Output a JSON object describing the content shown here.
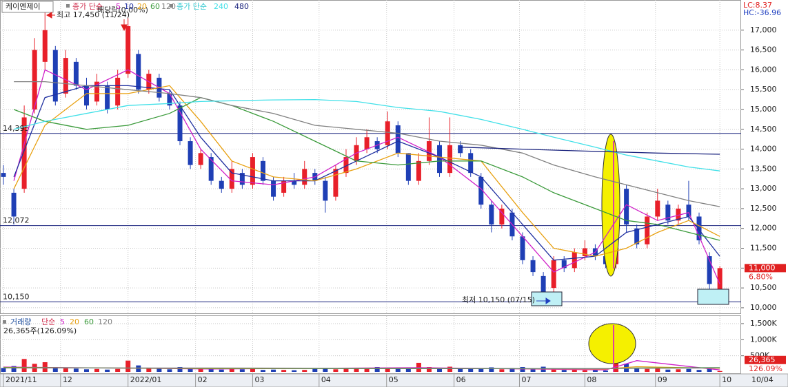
{
  "chart_data": [
    {
      "type": "candlestick",
      "stock_name": "케이엔제이",
      "legend_label": "종가 단순",
      "legend_label2": "종가 단순",
      "lc": "LC:8.37",
      "hc": "HC:-36.96",
      "up_color": "#e8202a",
      "down_color": "#1f3fb5",
      "grid": true,
      "ylim": [
        9860,
        17760
      ],
      "yticks": [
        {
          "value": 10000,
          "label": "10,000"
        },
        {
          "value": 10500,
          "label": "10,500"
        },
        {
          "value": 11000,
          "label": "11,000"
        },
        {
          "value": 11500,
          "label": "11,500"
        },
        {
          "value": 12000,
          "label": "12,000"
        },
        {
          "value": 12500,
          "label": "12,500"
        },
        {
          "value": 13000,
          "label": "13,000"
        },
        {
          "value": 13500,
          "label": "13,500"
        },
        {
          "value": 14000,
          "label": "14,000"
        },
        {
          "value": 14500,
          "label": "14,500"
        },
        {
          "value": 15000,
          "label": "15,000"
        },
        {
          "value": 15500,
          "label": "15,500"
        },
        {
          "value": 16000,
          "label": "16,000"
        },
        {
          "value": 16500,
          "label": "16,500"
        },
        {
          "value": 17000,
          "label": "17,000"
        }
      ],
      "xticks": [
        {
          "value": 0,
          "label": "2021/11"
        },
        {
          "value": 5.5,
          "label": "12"
        },
        {
          "value": 12,
          "label": "2022/01"
        },
        {
          "value": 18.5,
          "label": "02"
        },
        {
          "value": 24,
          "label": "03"
        },
        {
          "value": 30.4,
          "label": "04"
        },
        {
          "value": 36.9,
          "label": "05"
        },
        {
          "value": 43.4,
          "label": "06"
        },
        {
          "value": 49.7,
          "label": "07"
        },
        {
          "value": 56,
          "label": "08"
        },
        {
          "value": 62.8,
          "label": "09"
        },
        {
          "value": 69,
          "label": "10"
        }
      ],
      "last_date": "10/04",
      "open": [
        13400,
        12900,
        13000,
        15000,
        16200,
        16500,
        15400,
        16200,
        15600,
        15200,
        15600,
        15100,
        15900,
        16400,
        15500,
        15800,
        15400,
        15100,
        14200,
        13600,
        13800,
        13200,
        13000,
        13400,
        13100,
        13700,
        13200,
        12900,
        13200,
        13100,
        13400,
        13200,
        12800,
        13400,
        13700,
        14000,
        14200,
        14100,
        14600,
        13900,
        13200,
        13700,
        14100,
        13400,
        14100,
        13900,
        13300,
        12600,
        12100,
        12400,
        11800,
        11200,
        10800,
        10500,
        11200,
        11000,
        11300,
        11500,
        11300,
        11100,
        13000,
        12000,
        11600,
        12300,
        12600,
        12200,
        12600,
        12300,
        11300,
        10450
      ],
      "high": [
        13600,
        13000,
        15100,
        16800,
        17450,
        16600,
        16500,
        16300,
        15800,
        15900,
        15700,
        16000,
        17300,
        16500,
        16000,
        15900,
        15500,
        15200,
        14300,
        14000,
        13900,
        13300,
        13700,
        13500,
        13900,
        13800,
        13300,
        13300,
        13400,
        13700,
        13500,
        13300,
        13600,
        14000,
        14300,
        14500,
        14300,
        14950,
        14700,
        13900,
        13900,
        14800,
        14200,
        14800,
        14200,
        14000,
        13400,
        12700,
        12600,
        12500,
        11900,
        11300,
        10900,
        11300,
        11300,
        11500,
        11700,
        11600,
        11400,
        14000,
        13100,
        12100,
        12400,
        13000,
        12700,
        12600,
        13200,
        12400,
        11400,
        11050
      ],
      "low": [
        13100,
        12100,
        12900,
        14900,
        16000,
        15100,
        15300,
        15500,
        15000,
        15100,
        14900,
        15000,
        15800,
        15400,
        15400,
        15200,
        15000,
        14100,
        13500,
        13500,
        13100,
        12900,
        12900,
        13000,
        13000,
        13100,
        12700,
        12800,
        13000,
        13000,
        13100,
        12400,
        12700,
        13300,
        13600,
        13900,
        13900,
        14000,
        13800,
        13100,
        13100,
        13600,
        13300,
        13300,
        13800,
        13300,
        12500,
        11900,
        12000,
        11700,
        11100,
        10800,
        10150,
        10400,
        10900,
        10900,
        11200,
        11200,
        11000,
        11000,
        11900,
        11500,
        11500,
        12200,
        12100,
        12100,
        12200,
        11600,
        10300,
        10350
      ],
      "close": [
        13300,
        12300,
        14800,
        16500,
        17000,
        15200,
        16300,
        15600,
        15100,
        15700,
        15000,
        15800,
        17100,
        15500,
        15900,
        15300,
        15100,
        14200,
        13600,
        13900,
        13200,
        13000,
        13500,
        13100,
        13800,
        13200,
        12800,
        13200,
        13100,
        13500,
        13200,
        12700,
        13500,
        13800,
        14100,
        14300,
        14000,
        14700,
        13900,
        13200,
        13700,
        14200,
        13400,
        14100,
        13900,
        13400,
        12600,
        12100,
        12500,
        11800,
        11200,
        10900,
        10400,
        11200,
        11000,
        11400,
        11500,
        11300,
        11100,
        13600,
        12100,
        11600,
        12300,
        12700,
        12200,
        12500,
        12300,
        11700,
        10600,
        11000
      ],
      "series": [
        {
          "name": "5",
          "color": "#d020c8",
          "x": [
            1,
            4,
            8,
            12,
            16,
            19,
            22,
            26,
            30,
            34,
            38,
            42,
            46,
            50,
            53,
            57,
            60,
            63,
            66,
            69
          ],
          "values": [
            13200,
            16000,
            15500,
            16000,
            15400,
            14000,
            13200,
            13100,
            13300,
            13900,
            14300,
            13800,
            13000,
            11800,
            10900,
            11400,
            12600,
            12200,
            12400,
            10600
          ]
        },
        {
          "name": "10",
          "color": "#2030a0",
          "x": [
            1,
            4,
            8,
            12,
            16,
            19,
            22,
            26,
            30,
            34,
            38,
            42,
            46,
            50,
            53,
            57,
            60,
            63,
            66,
            69
          ],
          "values": [
            13300,
            15300,
            15600,
            15600,
            15500,
            14300,
            13400,
            13200,
            13200,
            13700,
            14200,
            13800,
            13300,
            12100,
            11200,
            11300,
            11900,
            12100,
            12300,
            11300
          ]
        },
        {
          "name": "20",
          "color": "#e8a010",
          "x": [
            1,
            4,
            8,
            12,
            16,
            19,
            22,
            26,
            30,
            34,
            38,
            42,
            46,
            50,
            53,
            57,
            60,
            63,
            66,
            69
          ],
          "values": [
            13000,
            14600,
            15400,
            15400,
            15600,
            14700,
            13700,
            13300,
            13200,
            13500,
            13900,
            13800,
            13700,
            12400,
            11500,
            11300,
            11500,
            11900,
            12200,
            11800
          ]
        },
        {
          "name": "60",
          "color": "#3a9a3a",
          "x": [
            1,
            4,
            8,
            12,
            16,
            19,
            22,
            26,
            30,
            34,
            38,
            42,
            46,
            50,
            53,
            57,
            60,
            63,
            66,
            69
          ],
          "values": [
            15000,
            14700,
            14500,
            14600,
            14900,
            15300,
            15100,
            14700,
            14200,
            13700,
            13600,
            13700,
            13700,
            13300,
            12900,
            12500,
            12200,
            12100,
            11900,
            11700
          ]
        },
        {
          "name": "120",
          "color": "#808080",
          "x": [
            1,
            4,
            8,
            12,
            16,
            19,
            22,
            26,
            30,
            34,
            38,
            42,
            46,
            50,
            53,
            57,
            60,
            63,
            66,
            69
          ],
          "values": [
            15700,
            15700,
            15600,
            15500,
            15400,
            15300,
            15100,
            14900,
            14600,
            14500,
            14400,
            14200,
            14100,
            13900,
            13600,
            13300,
            13100,
            12900,
            12700,
            12550
          ]
        },
        {
          "name": "240",
          "color": "#40e0e8",
          "x": [
            1,
            4,
            8,
            12,
            16,
            19,
            22,
            26,
            30,
            34,
            38,
            42,
            46,
            50,
            53,
            57,
            60,
            63,
            66,
            69
          ],
          "values": [
            14500,
            14700,
            14900,
            15100,
            15150,
            15200,
            15220,
            15240,
            15250,
            15200,
            15050,
            14950,
            14750,
            14500,
            14300,
            14050,
            13850,
            13700,
            13550,
            13450
          ]
        },
        {
          "name": "480",
          "color": "#1a237e",
          "x": [
            44,
            50,
            56,
            63,
            69
          ],
          "values": [
            14050,
            14000,
            13950,
            13900,
            13870
          ]
        }
      ],
      "hlines": [
        {
          "value": 14395,
          "label": "14,395"
        },
        {
          "value": 12072,
          "label": "12,072"
        },
        {
          "value": 10150,
          "label": "10,150"
        }
      ],
      "high_note": "최고 17,450 (11/24)",
      "dividend_note": "배당락(0.00%)",
      "low_note": "최저 10,150 (07/15)",
      "price_tag": {
        "value": 11000,
        "label": "11,000"
      },
      "change": "6.80%"
    },
    {
      "type": "bar",
      "legend_title": "거래량",
      "legend_label": "단순",
      "summary": "26,365주(126.09%)",
      "ylim": [
        0,
        1670000
      ],
      "yticks": [
        {
          "value": 500000,
          "label": "500K"
        },
        {
          "value": 1000000,
          "label": "1,000K"
        },
        {
          "value": 1500000,
          "label": "1,500K"
        }
      ],
      "values": [
        120000,
        180000,
        400000,
        250000,
        300000,
        150000,
        120000,
        100000,
        80000,
        90000,
        70000,
        90000,
        350000,
        200000,
        120000,
        100000,
        80000,
        150000,
        120000,
        90000,
        80000,
        70000,
        90000,
        80000,
        100000,
        60000,
        70000,
        60000,
        50000,
        60000,
        90000,
        110000,
        80000,
        100000,
        120000,
        90000,
        150000,
        130000,
        110000,
        90000,
        280000,
        150000,
        120000,
        160000,
        100000,
        90000,
        110000,
        140000,
        80000,
        120000,
        150000,
        100000,
        160000,
        90000,
        60000,
        70000,
        50000,
        60000,
        40000,
        1450000,
        250000,
        120000,
        90000,
        110000,
        70000,
        80000,
        90000,
        60000,
        100000,
        26365
      ],
      "series": [
        {
          "name": "5",
          "color": "#d020c8",
          "x": [
            0,
            20,
            40,
            58,
            61,
            69
          ],
          "values": [
            150000,
            90000,
            130000,
            60000,
            350000,
            60000
          ]
        },
        {
          "name": "20",
          "color": "#e8a010",
          "x": [
            0,
            20,
            40,
            58,
            61,
            69
          ],
          "values": [
            140000,
            100000,
            110000,
            90000,
            160000,
            110000
          ]
        },
        {
          "name": "60",
          "color": "#3a9a3a",
          "x": [
            0,
            20,
            40,
            58,
            61,
            69
          ],
          "values": [
            130000,
            110000,
            100000,
            100000,
            120000,
            130000
          ]
        },
        {
          "name": "120",
          "color": "#808080",
          "x": [
            0,
            20,
            40,
            58,
            61,
            69
          ],
          "values": [
            120000,
            120000,
            110000,
            100000,
            110000,
            120000
          ]
        }
      ],
      "last_tag": {
        "value": 26365,
        "label": "26,365"
      },
      "ratio": "126.09%"
    }
  ]
}
